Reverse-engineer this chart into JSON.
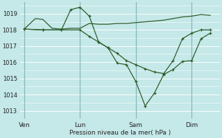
{
  "background_color": "#c5e8e8",
  "grid_color": "#ffffff",
  "line_color": "#2a5c2a",
  "xlabel": "Pression niveau de la mer( hPa )",
  "ylim": [
    1012.5,
    1019.7
  ],
  "yticks": [
    1013,
    1014,
    1015,
    1016,
    1017,
    1018,
    1019
  ],
  "xtick_labels": [
    "Ven",
    "Lun",
    "Sam",
    "Dim"
  ],
  "xtick_positions": [
    0,
    3,
    6,
    9
  ],
  "xlim": [
    -0.2,
    10.5
  ],
  "series": [
    {
      "x": [
        0,
        0.6,
        1.0,
        1.5,
        2.0,
        2.5,
        3.0,
        3.5,
        4.0,
        4.5,
        5.0,
        5.5,
        6.0,
        6.5,
        7.0,
        7.5,
        8.0,
        8.5,
        9.0,
        9.5,
        10.0
      ],
      "y": [
        1018.05,
        1018.7,
        1018.65,
        1018.1,
        1018.05,
        1018.1,
        1018.1,
        1018.4,
        1018.35,
        1018.35,
        1018.4,
        1018.4,
        1018.45,
        1018.5,
        1018.55,
        1018.6,
        1018.7,
        1018.8,
        1018.85,
        1018.95,
        1018.9
      ],
      "has_markers": false
    },
    {
      "x": [
        0,
        1.0,
        2.0,
        2.5,
        3.0,
        3.5,
        4.0,
        4.5,
        5.0,
        5.5,
        6.0,
        6.5,
        7.0,
        7.5,
        8.0,
        8.5,
        9.0,
        9.5,
        10.0
      ],
      "y": [
        1018.05,
        1018.0,
        1018.0,
        1019.25,
        1019.4,
        1018.85,
        1017.25,
        1016.9,
        1015.95,
        1015.85,
        1014.8,
        1013.3,
        1014.1,
        1015.25,
        1015.55,
        1016.05,
        1016.1,
        1017.45,
        1017.8
      ],
      "has_markers": true
    },
    {
      "x": [
        0,
        1.0,
        2.0,
        3.0,
        3.5,
        4.0,
        4.5,
        5.0,
        5.5,
        6.0,
        6.5,
        7.0,
        7.5,
        8.0,
        8.5,
        9.0,
        9.5,
        10.0
      ],
      "y": [
        1018.05,
        1018.0,
        1018.0,
        1018.0,
        1017.6,
        1017.25,
        1016.9,
        1016.55,
        1016.1,
        1015.85,
        1015.6,
        1015.4,
        1015.3,
        1016.1,
        1017.45,
        1017.8,
        1018.0,
        1018.0
      ],
      "has_markers": true
    }
  ],
  "vlines_x": [
    0,
    3,
    6,
    9
  ],
  "vlines_color": "#8ab8b8",
  "figsize": [
    3.2,
    2.0
  ],
  "dpi": 100
}
